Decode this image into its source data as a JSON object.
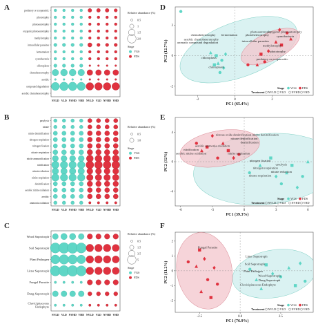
{
  "colors": {
    "vgs": "#5fd6c6",
    "fds": "#e0323f",
    "vgs_ellipse": "#cdeeee",
    "fds_ellipse": "#f3c6cc",
    "frame": "#555555"
  },
  "chart_data": [
    {
      "panel": "A",
      "type": "bubble",
      "categories": [
        "NVLD",
        "VLD",
        "NVHD",
        "VHD",
        "NVLD",
        "VLD",
        "NVHD",
        "VHD"
      ],
      "stage": [
        "VGS",
        "VGS",
        "VGS",
        "VGS",
        "FDS",
        "FDS",
        "FDS",
        "FDS"
      ],
      "rows": [
        "predatory or exoparasitic",
        "phototrophy",
        "photoautotrophy",
        "oxygenic photoautotrophy",
        "methylotrophy",
        "intracellular parasites",
        "fermentation",
        "cyanobacteria",
        "chloroplasts",
        "chemoheterotrophy",
        "aerobic",
        "compound degradation",
        "aerobic chemoheterotrophy"
      ],
      "values": [
        [
          0.2,
          0.2,
          0.2,
          0.2,
          0.4,
          0.4,
          0.4,
          0.3
        ],
        [
          0.2,
          0.2,
          0.2,
          0.2,
          0.2,
          0.2,
          0.2,
          0.2
        ],
        [
          0.2,
          0.2,
          0.2,
          0.2,
          0.2,
          0.2,
          0.2,
          0.2
        ],
        [
          0.2,
          0.2,
          0.2,
          0.2,
          0.2,
          0.2,
          0.2,
          0.2
        ],
        [
          0.2,
          0.2,
          0.2,
          0.2,
          0.2,
          0.2,
          0.2,
          0.2
        ],
        [
          0.3,
          0.3,
          0.3,
          0.3,
          0.5,
          0.3,
          0.3,
          0.3
        ],
        [
          0.2,
          0.2,
          0.2,
          0.2,
          0.2,
          0.2,
          0.2,
          0.2
        ],
        [
          0.2,
          0.2,
          0.2,
          0.2,
          0.2,
          0.2,
          0.2,
          0.2
        ],
        [
          0.3,
          0.3,
          0.3,
          0.3,
          0.1,
          0.1,
          0.1,
          0.1
        ],
        [
          1.2,
          1.3,
          1.3,
          1.2,
          0.9,
          0.9,
          0.9,
          0.9
        ],
        [
          0.1,
          0.1,
          0.1,
          0.1,
          0.1,
          0.1,
          0.1,
          0.1
        ],
        [
          1.8,
          2.0,
          2.0,
          1.9,
          1.6,
          1.6,
          1.6,
          1.6
        ],
        [
          0,
          0,
          0,
          0,
          0,
          0,
          0,
          0
        ]
      ],
      "legend_title": "Relative abundance (%)",
      "legend_values": [
        "0.5",
        "1",
        "1.5",
        "2.0"
      ],
      "stage_title": "Stage",
      "stage_labels": [
        "VGS",
        "FDS"
      ]
    },
    {
      "panel": "B",
      "type": "bubble",
      "categories": [
        "NVLD",
        "VLD",
        "NVHD",
        "VHD",
        "NVLD",
        "VLD",
        "NVHD",
        "VHD"
      ],
      "stage": [
        "VGS",
        "VGS",
        "VGS",
        "VGS",
        "FDS",
        "FDS",
        "FDS",
        "FDS"
      ],
      "rows": [
        "pasylysis",
        "nitrate",
        "nitrite denitrification",
        "nitrogen respiration",
        "nitrogen fixation",
        "nitrate respiration",
        "nitrite ammonification",
        "nitrification",
        "nitrate reduction",
        "nitrite respiration",
        "denitrification",
        "aerobic nitrite oxidation",
        "aerobic",
        "ammonia oxidation"
      ],
      "values": [
        [
          0.2,
          0.2,
          0.2,
          0.2,
          0.3,
          0.3,
          0.3,
          0.3
        ],
        [
          0.2,
          0.2,
          0.2,
          0.2,
          0.3,
          0.3,
          0.3,
          0.3
        ],
        [
          0.3,
          0.3,
          0.3,
          0.3,
          0.4,
          0.4,
          0.4,
          0.4
        ],
        [
          0.3,
          0.3,
          0.3,
          0.3,
          0.4,
          0.4,
          0.4,
          0.4
        ],
        [
          0.3,
          0.3,
          0.3,
          0.3,
          0.4,
          0.4,
          0.4,
          0.4
        ],
        [
          0.4,
          0.4,
          0.4,
          0.4,
          0.5,
          0.5,
          0.5,
          0.5
        ],
        [
          0.6,
          0.6,
          0.6,
          0.6,
          0.8,
          0.8,
          0.8,
          0.8
        ],
        [
          0.9,
          0.9,
          0.9,
          0.9,
          1.0,
          1.0,
          1.0,
          1.0
        ],
        [
          0.7,
          0.7,
          0.7,
          0.7,
          0.6,
          0.6,
          0.6,
          0.6
        ],
        [
          0.9,
          0.9,
          0.9,
          0.9,
          0.7,
          0.7,
          0.7,
          0.7
        ],
        [
          0.3,
          0.3,
          0.3,
          0.3,
          0.5,
          0.5,
          0.5,
          0.5
        ],
        [
          0.3,
          0.3,
          0.3,
          0.3,
          0.4,
          0.4,
          0.4,
          0.4
        ],
        [
          0.3,
          0.3,
          0.3,
          0.3,
          0.4,
          0.4,
          0.4,
          0.4
        ],
        [
          0.2,
          0.2,
          0.2,
          0.2,
          0.1,
          0.1,
          0.1,
          0.1
        ]
      ],
      "legend_title": "Relative abundance (%)",
      "legend_values": [
        "0.5",
        "1.0"
      ],
      "stage_title": "Stage",
      "stage_labels": [
        "VGS",
        "FDS"
      ]
    },
    {
      "panel": "C",
      "type": "bubble",
      "categories": [
        "NVLD",
        "VLD",
        "NVHD",
        "VHD",
        "NVLD",
        "VLD",
        "NVHD",
        "VHD"
      ],
      "stage": [
        "VGS",
        "VGS",
        "VGS",
        "VGS",
        "FDS",
        "FDS",
        "FDS",
        "FDS"
      ],
      "rows": [
        "Wood Saprotroph",
        "Soil Saprotroph",
        "Plant Pathogen",
        "Litter Saprotroph",
        "Fungal Parasite",
        "Dung Saprotroph",
        "Clavicipitaceous Endophyte"
      ],
      "values": [
        [
          0.6,
          0.7,
          0.7,
          0.6,
          0.5,
          0.5,
          0.5,
          0.5
        ],
        [
          1.8,
          2.0,
          2.0,
          1.8,
          1.0,
          1.0,
          1.0,
          0.9
        ],
        [
          1.4,
          1.6,
          1.5,
          1.3,
          1.0,
          1.0,
          1.0,
          0.9
        ],
        [
          1.8,
          2.0,
          2.0,
          1.8,
          1.0,
          1.0,
          1.0,
          0.9
        ],
        [
          0.1,
          0.1,
          0.1,
          0.1,
          0.5,
          0.5,
          0.5,
          0.5
        ],
        [
          0.6,
          0.6,
          0.6,
          0.6,
          0.3,
          0.3,
          0.3,
          0.3
        ],
        [
          0.1,
          0.1,
          0.1,
          0.1,
          0.1,
          0.1,
          0.1,
          0.1
        ]
      ],
      "legend_title": "Relative abundance (%)",
      "legend_values": [
        "0.5",
        "1.5",
        "3.5",
        "5"
      ],
      "stage_title": "Stage",
      "stage_labels": [
        "VGS",
        "FDS"
      ]
    },
    {
      "panel": "D",
      "type": "scatter",
      "xlabel": "PC1 (65.4%)",
      "ylabel": "PC2 (12.7%)",
      "xlim": [
        -3.2,
        4.2
      ],
      "ylim": [
        -2.6,
        3.2
      ],
      "xticks": [
        "-2",
        "0",
        "2"
      ],
      "xtick_values": [
        -2,
        0,
        2
      ],
      "yticks": [
        "-2",
        "0",
        "2"
      ],
      "ytick_values": [
        -2,
        0,
        2
      ],
      "vgs_points": [
        [
          -2.9,
          2.9
        ],
        [
          -1.3,
          0.2
        ],
        [
          -1.0,
          0.0
        ],
        [
          -0.5,
          0.1
        ],
        [
          -0.7,
          -0.3
        ],
        [
          -0.9,
          -0.5
        ],
        [
          -1.1,
          -0.6
        ],
        [
          -0.6,
          -0.8
        ],
        [
          -0.8,
          -1.1
        ]
      ],
      "fds_points": [
        [
          0.7,
          -0.6
        ],
        [
          1.2,
          -0.6
        ],
        [
          1.4,
          0.1
        ],
        [
          1.8,
          0.3
        ],
        [
          1.6,
          -0.4
        ],
        [
          2.2,
          0.9
        ],
        [
          2.5,
          0.7
        ],
        [
          2.4,
          1.7
        ],
        [
          2.8,
          1.5
        ],
        [
          3.0,
          1.1
        ]
      ],
      "vgs_ellipse": {
        "cx": 0.2,
        "cy": 0.4,
        "rx": 3.3,
        "ry": 1.8,
        "rot": -20
      },
      "fds_ellipse": {
        "cx": 1.9,
        "cy": 0.6,
        "rx": 1.7,
        "ry": 0.9,
        "rot": -25
      },
      "loadings": [
        {
          "label": "chemoheterotrophy",
          "x": -1.7,
          "y": 1.3
        },
        {
          "label": "fermentation",
          "x": -0.3,
          "y": 1.3
        },
        {
          "label": "photoautotrophy",
          "x": 1.4,
          "y": 1.5
        },
        {
          "label": "photoheterotrophy",
          "x": 1.2,
          "y": 1.3
        },
        {
          "label": "aerobic chemoheterotrophy",
          "x": -1.8,
          "y": 1.0
        },
        {
          "label": "aromatic compound degradation",
          "x": -2.0,
          "y": 0.8
        },
        {
          "label": "intracellular parasites",
          "x": 1.1,
          "y": 0.9
        },
        {
          "label": "oxygenic photoautotrophy",
          "x": 2.7,
          "y": 1.5
        },
        {
          "label": "cyanobacteria",
          "x": 2.7,
          "y": 1.2
        },
        {
          "label": "methylotrophy",
          "x": 2.0,
          "y": 0.6
        },
        {
          "label": "phototrophy",
          "x": 2.3,
          "y": 0.2
        },
        {
          "label": "chloroplasts",
          "x": -1.4,
          "y": -0.2
        },
        {
          "label": "chloroplasts",
          "x": -1.0,
          "y": -0.8
        },
        {
          "label": "predatory or exoparasitic",
          "x": 2.0,
          "y": -0.3
        }
      ],
      "legend_stage": [
        "Stage",
        "VGS",
        "FDS"
      ],
      "legend_treatment": [
        "Treatment",
        "NVLD",
        "VLD",
        "NVHD",
        "VHD"
      ]
    },
    {
      "panel": "E",
      "type": "scatter",
      "xlabel": "PC1 (39.3%)",
      "ylabel": "PC2 (32%)",
      "xlim": [
        -6.5,
        6.5
      ],
      "ylim": [
        -6,
        6
      ],
      "xticks": [
        "-6",
        "-3",
        "0",
        "3",
        "6"
      ],
      "xtick_values": [
        -6,
        -3,
        0,
        3,
        6
      ],
      "yticks": [
        "-4",
        "0",
        "4"
      ],
      "ytick_values": [
        -4,
        0,
        4
      ],
      "vgs_points": [
        [
          0.5,
          -1.5
        ],
        [
          1.5,
          -0.5
        ],
        [
          2.5,
          0.5
        ],
        [
          3.0,
          -2.0
        ],
        [
          3.5,
          -3.0
        ],
        [
          4.0,
          -1.5
        ],
        [
          4.5,
          -0.5
        ],
        [
          5.0,
          -3.5
        ],
        [
          5.5,
          -2.0
        ],
        [
          6.0,
          0.0
        ]
      ],
      "fds_points": [
        [
          -4.5,
          2.5
        ],
        [
          -4.0,
          1.5
        ],
        [
          -3.5,
          2.0
        ],
        [
          -3.0,
          3.5
        ],
        [
          -2.5,
          0.5
        ],
        [
          -2.0,
          2.5
        ],
        [
          -1.5,
          1.5
        ],
        [
          -1.0,
          0.5
        ],
        [
          -0.5,
          1.0
        ]
      ],
      "vgs_ellipse": {
        "cx": 2.0,
        "cy": -1.0,
        "rx": 6.8,
        "ry": 4.8,
        "rot": -5
      },
      "fds_ellipse": {
        "cx": -2.3,
        "cy": 1.8,
        "rx": 3.8,
        "ry": 2.4,
        "rot": -10
      },
      "loadings": [
        {
          "label": "nitrous oxide denitrification",
          "x": -1.0,
          "y": 3.5
        },
        {
          "label": "nitrite denitrification",
          "x": 2.0,
          "y": 3.5
        },
        {
          "label": "nitrate denitrification",
          "x": 0.0,
          "y": 3.0
        },
        {
          "label": "denitrification",
          "x": 0.5,
          "y": 2.5
        },
        {
          "label": "aerobic ammonia oxidation",
          "x": -3.0,
          "y": 2.0
        },
        {
          "label": "nitrification",
          "x": -5.0,
          "y": 1.5
        },
        {
          "label": "aerobic nitrite oxidation",
          "x": -5.0,
          "y": 1.0
        },
        {
          "label": "nitrite respiration",
          "x": -0.5,
          "y": 1.0
        },
        {
          "label": "nitrogen fixation",
          "x": 1.5,
          "y": 0.0
        },
        {
          "label": "ureolysis",
          "x": 3.5,
          "y": -0.5
        },
        {
          "label": "nitrogen respiration",
          "x": 2.0,
          "y": -1.0
        },
        {
          "label": "nitrate reduction",
          "x": 3.5,
          "y": -1.5
        },
        {
          "label": "nitrate respiration",
          "x": 1.5,
          "y": -2.0
        }
      ],
      "legend_stage": [
        "Stage",
        "VGS",
        "FDS"
      ],
      "legend_treatment": [
        "Treatment",
        "NVLD",
        "VLD",
        "NVHD",
        "VHD"
      ]
    },
    {
      "panel": "F",
      "type": "scatter",
      "xlabel": "PC1 (76.9%)",
      "ylabel": "PC2 (11.2%)",
      "xlim": [
        -4.0,
        4.5
      ],
      "ylim": [
        -2.8,
        2.6
      ],
      "xticks": [
        "-2.5",
        "0.0",
        "2.5"
      ],
      "xtick_values": [
        -2.5,
        0,
        2.5
      ],
      "yticks": [
        "-2",
        "-1",
        "0",
        "1",
        "2"
      ],
      "ytick_values": [
        -2,
        -1,
        0,
        1,
        2
      ],
      "vgs_points": [
        [
          0.6,
          0.1
        ],
        [
          1.0,
          -0.6
        ],
        [
          1.6,
          0.4
        ],
        [
          2.0,
          -0.2
        ],
        [
          2.5,
          -0.4
        ],
        [
          3.0,
          0.2
        ],
        [
          3.4,
          -1.0
        ],
        [
          3.7,
          0.5
        ],
        [
          4.0,
          -0.7
        ],
        [
          1.3,
          -1.2
        ]
      ],
      "fds_points": [
        [
          -3.2,
          0.6
        ],
        [
          -2.7,
          0.3
        ],
        [
          -2.5,
          1.4
        ],
        [
          -2.2,
          0.8
        ],
        [
          -2.0,
          -0.6
        ],
        [
          -2.4,
          -1.4
        ],
        [
          -1.8,
          -1.8
        ],
        [
          -1.6,
          0.2
        ],
        [
          -1.4,
          -0.9
        ]
      ],
      "vgs_ellipse": {
        "cx": 2.1,
        "cy": -0.2,
        "rx": 2.6,
        "ry": 1.6,
        "rot": -10
      },
      "fds_ellipse": {
        "cx": -2.2,
        "cy": 0.0,
        "rx": 1.7,
        "ry": 2.6,
        "rot": -10
      },
      "loadings": [
        {
          "label": "Fungal Parasite",
          "x": -2.0,
          "y": 1.5
        },
        {
          "label": "Litter Saprotroph",
          "x": 1.0,
          "y": 0.9
        },
        {
          "label": "Soil Saprotroph",
          "x": 0.9,
          "y": 0.4
        },
        {
          "label": "Plant Pathogen",
          "x": 0.8,
          "y": -0.1
        },
        {
          "label": "Wood Saprotroph",
          "x": 1.8,
          "y": -0.4
        },
        {
          "label": "Dung Saprotroph",
          "x": 1.8,
          "y": -0.7
        },
        {
          "label": "Clavicipitaceous Endophyte",
          "x": 1.1,
          "y": -1.0
        }
      ],
      "legend_stage": [
        "Stage",
        "VGS",
        "FDS"
      ],
      "legend_treatment": [
        "Treatment",
        "NVLD",
        "VLD",
        "NVHD",
        "VHD"
      ]
    }
  ]
}
